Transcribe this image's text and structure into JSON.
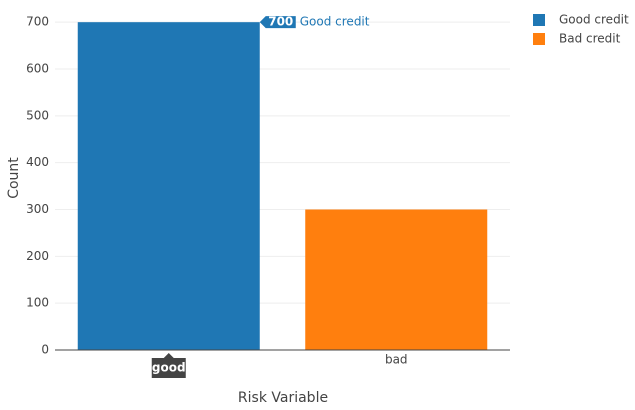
{
  "chart_data": {
    "type": "bar",
    "categories": [
      "good",
      "bad"
    ],
    "series": [
      {
        "name": "Good credit",
        "color": "#1f77b4",
        "values": [
          700,
          null
        ]
      },
      {
        "name": "Bad credit",
        "color": "#ff7f0e",
        "values": [
          null,
          300
        ]
      }
    ],
    "xlabel": "Risk Variable",
    "ylabel": "Count",
    "ylim": [
      0,
      726
    ],
    "yticks": [
      0,
      100,
      200,
      300,
      400,
      500,
      600,
      700
    ],
    "grid": true,
    "legend": "right"
  }
}
